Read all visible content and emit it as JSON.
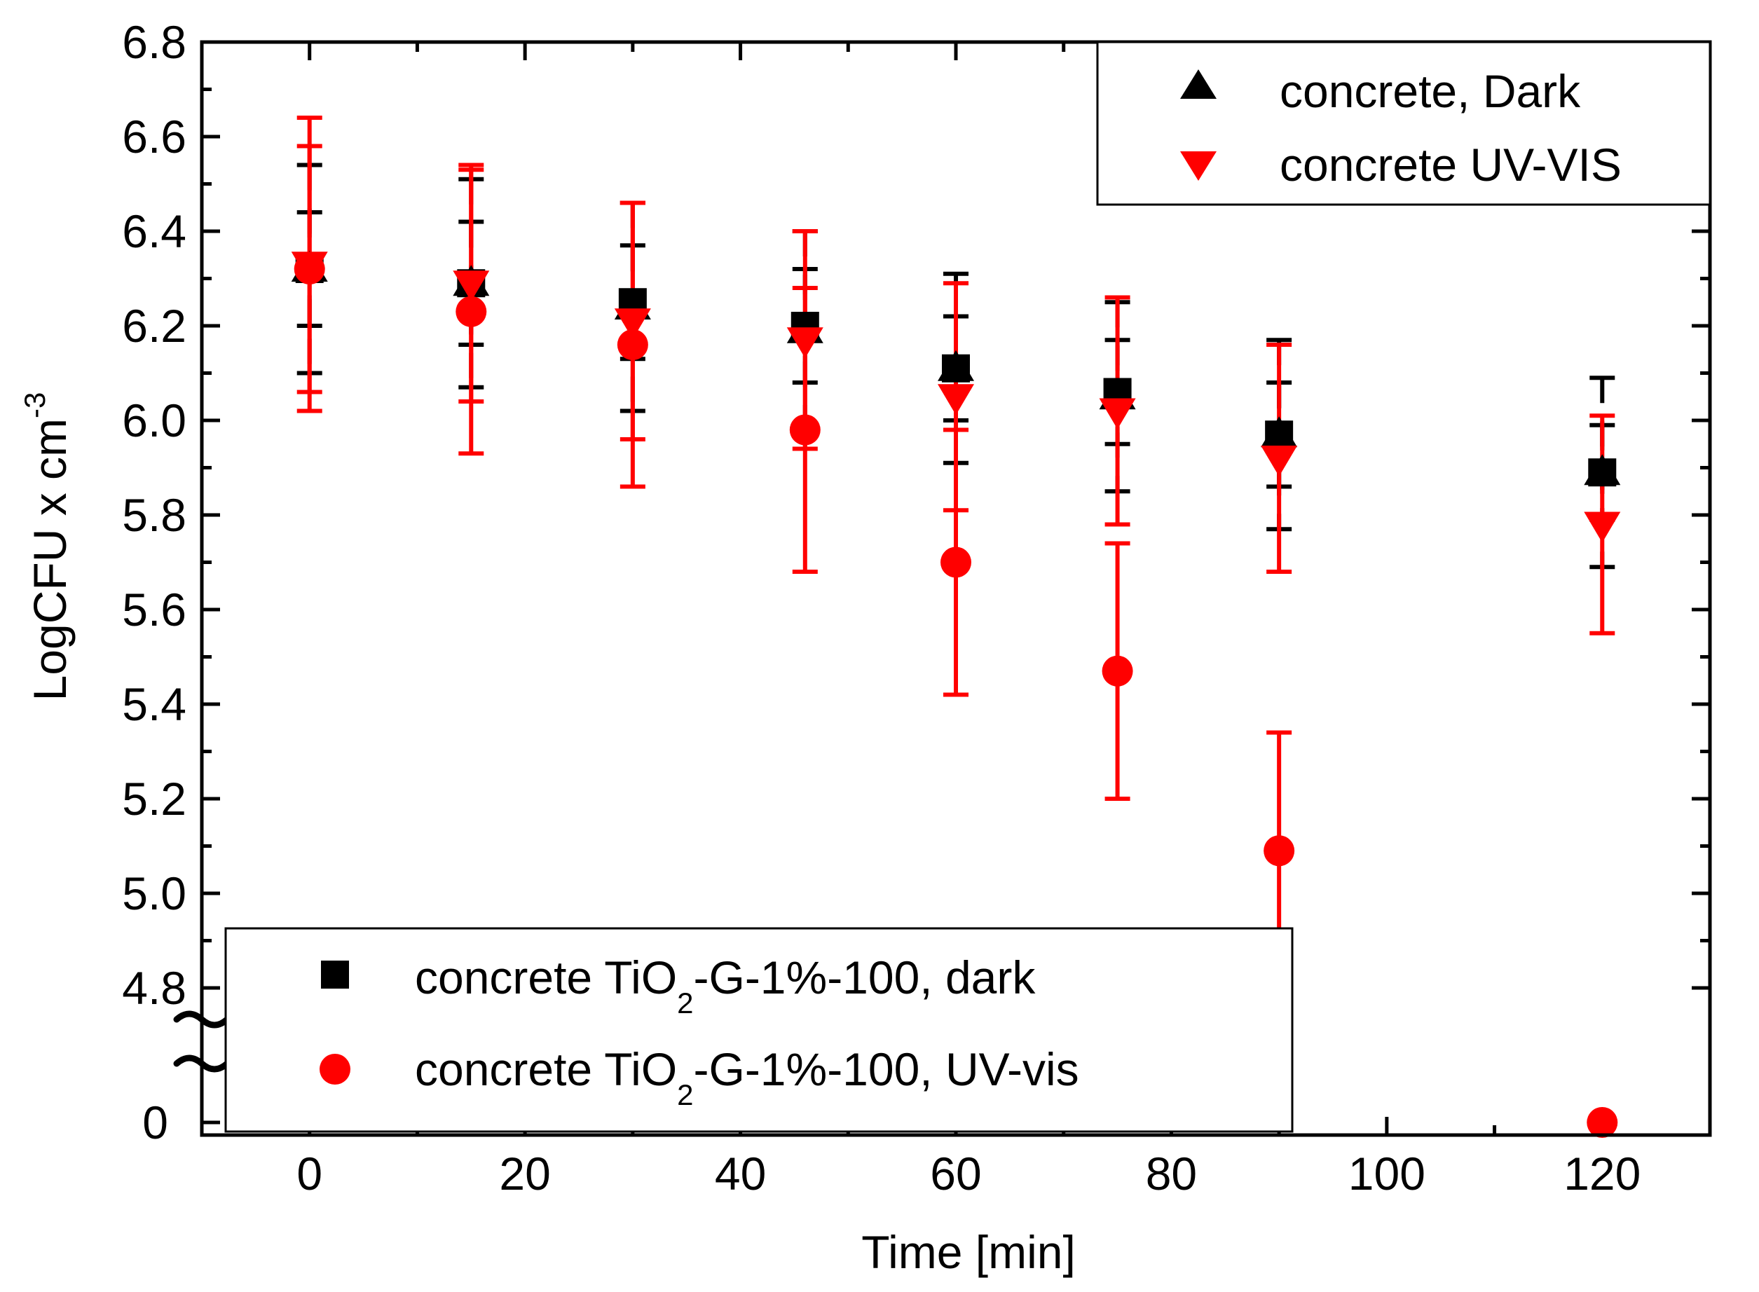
{
  "chart_data": {
    "type": "scatter",
    "title": "",
    "xlabel": "Time [min]",
    "ylabel": "LogCFU x cm",
    "ylabel_superscript": "-3",
    "xlim": [
      -10,
      130
    ],
    "ylim": [
      4.7,
      6.8
    ],
    "axis_break": {
      "lower_tick_label": "0",
      "lower_value": 0,
      "break_symbol": "~~",
      "note": "y-axis is broken between 0 and 4.8; the lowest band shows the value 0"
    },
    "x_ticks": [
      0,
      20,
      40,
      60,
      80,
      100,
      120
    ],
    "x_tick_labels": [
      "0",
      "20",
      "40",
      "60",
      "80",
      "100",
      "120"
    ],
    "y_ticks": [
      4.8,
      5.0,
      5.2,
      5.4,
      5.6,
      5.8,
      6.0,
      6.2,
      6.4,
      6.6,
      6.8
    ],
    "y_tick_labels": [
      "4.8",
      "5.0",
      "5.2",
      "5.4",
      "5.6",
      "5.8",
      "6.0",
      "6.2",
      "6.4",
      "6.6",
      "6.8"
    ],
    "grid": false,
    "series": [
      {
        "name": "concrete, Dark",
        "marker": "triangle-up",
        "color": "#000000",
        "x": [
          0,
          15,
          30,
          46,
          60,
          75,
          90,
          120
        ],
        "y": [
          6.32,
          6.29,
          6.24,
          6.19,
          6.11,
          6.05,
          5.97,
          5.89
        ],
        "err": [
          0.22,
          0.22,
          0.22,
          0.21,
          0.2,
          0.2,
          0.2,
          0.2
        ]
      },
      {
        "name": "concrete UV-VIS",
        "marker": "triangle-down",
        "color": "#ff0000",
        "x": [
          0,
          15,
          30,
          46,
          60,
          75,
          90,
          120
        ],
        "y": [
          6.33,
          6.29,
          6.21,
          6.17,
          6.05,
          6.02,
          5.92,
          5.78
        ],
        "err": [
          0.31,
          0.25,
          0.25,
          0.23,
          0.24,
          0.24,
          0.24,
          0.23
        ]
      },
      {
        "name_prefix": "concrete TiO",
        "name_sub": "2",
        "name_suffix": "-G-1%-100, dark",
        "marker": "square",
        "color": "#000000",
        "x": [
          0,
          15,
          30,
          46,
          60,
          75,
          90,
          120
        ],
        "y": [
          6.32,
          6.29,
          6.25,
          6.2,
          6.11,
          6.06,
          5.97,
          5.89
        ],
        "err": [
          0.12,
          0.13,
          0.12,
          0.12,
          0.11,
          0.11,
          0.11,
          0.1
        ]
      },
      {
        "name_prefix": "concrete TiO",
        "name_sub": "2",
        "name_suffix": "-G-1%-100, UV-vis",
        "marker": "circle",
        "color": "#ff0000",
        "x": [
          0,
          15,
          30,
          46,
          60,
          75,
          90,
          120
        ],
        "y": [
          6.32,
          6.23,
          6.16,
          5.98,
          5.7,
          5.47,
          5.09,
          0
        ],
        "err": [
          0.26,
          0.3,
          0.3,
          0.3,
          0.28,
          0.27,
          0.25,
          0
        ]
      }
    ],
    "legends": [
      {
        "placement": "top-right",
        "series_index": [
          0,
          1
        ]
      },
      {
        "placement": "bottom-left",
        "series_index": [
          2,
          3
        ]
      }
    ]
  }
}
